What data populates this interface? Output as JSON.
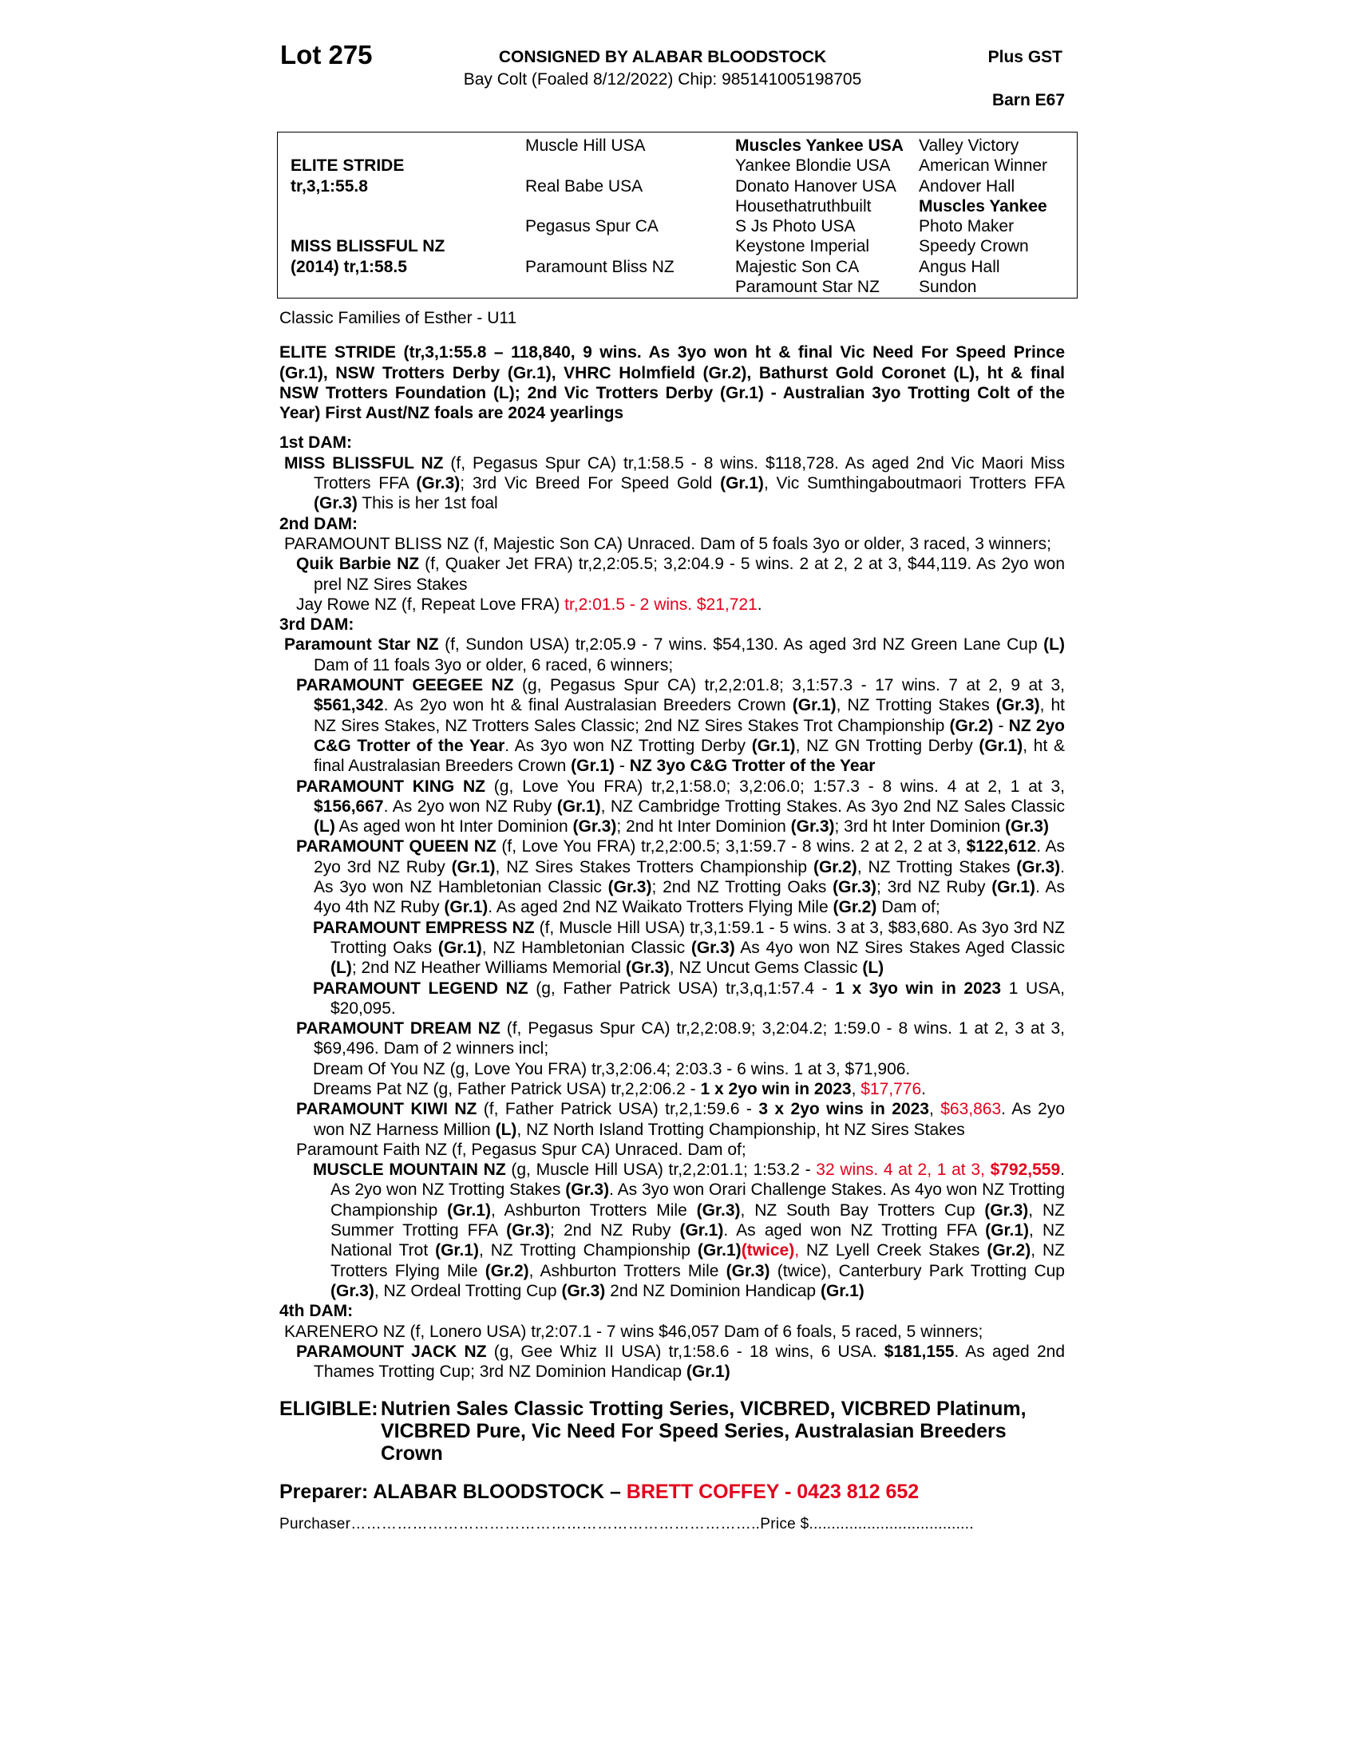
{
  "header": {
    "lot": "Lot 275",
    "consignor": "CONSIGNED BY ALABAR BLOODSTOCK",
    "gst": "Plus GST",
    "description": "Bay Colt (Foaled  8/12/2022) Chip: 985141005198705",
    "barn": "Barn E67"
  },
  "pedigree": {
    "rows": [
      [
        null,
        "Muscle Hill USA",
        {
          "text": "Muscles Yankee USA",
          "bold": true
        },
        "Valley Victory"
      ],
      [
        {
          "text": "ELITE STRIDE",
          "bold": true
        },
        null,
        "Yankee Blondie USA",
        "American Winner"
      ],
      [
        {
          "text": "tr,3,1:55.8",
          "bold": true
        },
        "Real Babe USA",
        "Donato Hanover USA",
        "Andover Hall"
      ],
      [
        null,
        null,
        "Housethatruthbuilt",
        {
          "text": "Muscles Yankee",
          "bold": true
        }
      ],
      [
        null,
        "Pegasus Spur CA",
        "S Js Photo USA",
        "Photo Maker"
      ],
      [
        {
          "text": "MISS BLISSFUL NZ",
          "bold": true
        },
        null,
        "Keystone Imperial",
        "Speedy Crown"
      ],
      [
        {
          "text": "(2014) tr,1:58.5",
          "bold": true
        },
        "Paramount Bliss NZ",
        "Majestic Son CA",
        "Angus Hall"
      ],
      [
        null,
        null,
        "Paramount Star NZ",
        "Sundon"
      ]
    ]
  },
  "family": "Classic Families of Esther - U11",
  "sire_summary": "ELITE STRIDE (tr,3,1:55.8 – 118,840, 9 wins. As 3yo won ht & final Vic Need For Speed Prince (Gr.1), NSW Trotters Derby (Gr.1), VHRC Holmfield (Gr.2), Bathurst Gold Coronet (L), ht & final NSW Trotters Foundation (L); 2nd Vic Trotters Derby (Gr.1) - Australian 3yo Trotting Colt of the Year) First Aust/NZ foals are 2024 yearlings",
  "body": [
    {
      "heading": "1st DAM:"
    },
    {
      "level": 0,
      "runs": [
        {
          "text": "MISS BLISSFUL NZ",
          "bold": true
        },
        " (f, Pegasus Spur CA) tr,1:58.5 - 8 wins. $118,728. As aged 2nd Vic Maori Miss Trotters FFA ",
        {
          "text": "(Gr.3)",
          "bold": true
        },
        "; 3rd Vic Breed For Speed Gold ",
        {
          "text": "(Gr.1)",
          "bold": true
        },
        ", Vic Sumthingaboutmaori Trotters FFA ",
        {
          "text": "(Gr.3)",
          "bold": true
        },
        " This is her 1st foal"
      ]
    },
    {
      "heading": "2nd DAM:"
    },
    {
      "level": 0,
      "runs": [
        "PARAMOUNT BLISS NZ (f, Majestic Son CA) Unraced. Dam of 5 foals 3yo or older, 3 raced, 3 winners;"
      ]
    },
    {
      "level": 1,
      "runs": [
        {
          "text": "Quik Barbie NZ",
          "bold": true
        },
        " (f, Quaker Jet FRA) tr,2,2:05.5; 3,2:04.9 - 5 wins. 2 at 2, 2 at 3, $44,119. As 2yo won prel NZ Sires Stakes"
      ]
    },
    {
      "level": 1,
      "runs": [
        "Jay Rowe NZ (f, Repeat Love FRA) ",
        {
          "text": "tr,2:01.5 - 2 wins. $21,721",
          "color": "red"
        },
        "."
      ]
    },
    {
      "heading": "3rd DAM:"
    },
    {
      "level": 0,
      "runs": [
        {
          "text": "Paramount Star NZ",
          "bold": true
        },
        " (f, Sundon USA) tr,2:05.9 - 7 wins. $54,130. As aged 3rd NZ Green Lane Cup ",
        {
          "text": "(L)",
          "bold": true
        },
        " Dam of 11 foals 3yo or older, 6 raced, 6 winners;"
      ]
    },
    {
      "level": 1,
      "runs": [
        {
          "text": "PARAMOUNT GEEGEE NZ",
          "bold": true
        },
        " (g, Pegasus Spur CA) tr,2,2:01.8; 3,1:57.3 - 17 wins. 7 at 2, 9 at 3, ",
        {
          "text": "$561,342",
          "bold": true
        },
        ". As 2yo won ht & final Australasian Breeders Crown ",
        {
          "text": "(Gr.1)",
          "bold": true
        },
        ", NZ Trotting Stakes ",
        {
          "text": "(Gr.3)",
          "bold": true
        },
        ", ht NZ Sires Stakes, NZ Trotters Sales Classic; 2nd NZ Sires Stakes Trot Championship ",
        {
          "text": "(Gr.2)",
          "bold": true
        },
        " - ",
        {
          "text": "NZ 2yo C&G Trotter of the Year",
          "bold": true
        },
        ". As 3yo won NZ Trotting Derby ",
        {
          "text": "(Gr.1)",
          "bold": true
        },
        ", NZ GN Trotting Derby ",
        {
          "text": "(Gr.1)",
          "bold": true
        },
        ", ht & final Australasian Breeders Crown ",
        {
          "text": "(Gr.1)",
          "bold": true
        },
        " - ",
        {
          "text": "NZ 3yo C&G Trotter of the Year",
          "bold": true
        }
      ]
    },
    {
      "level": 1,
      "runs": [
        {
          "text": "PARAMOUNT KING NZ",
          "bold": true
        },
        " (g, Love You FRA) tr,2,1:58.0; 3,2:06.0; 1:57.3 - 8 wins. 4 at 2, 1 at 3, ",
        {
          "text": "$156,667",
          "bold": true
        },
        ". As 2yo won NZ Ruby ",
        {
          "text": "(Gr.1)",
          "bold": true
        },
        ", NZ Cambridge Trotting Stakes. As 3yo 2nd NZ Sales Classic ",
        {
          "text": "(L)",
          "bold": true
        },
        " As aged won ht Inter Dominion ",
        {
          "text": "(Gr.3)",
          "bold": true
        },
        "; 2nd ht Inter Dominion ",
        {
          "text": "(Gr.3)",
          "bold": true
        },
        "; 3rd ht Inter Dominion ",
        {
          "text": "(Gr.3)",
          "bold": true
        }
      ]
    },
    {
      "level": 1,
      "runs": [
        {
          "text": "PARAMOUNT QUEEN NZ",
          "bold": true
        },
        " (f, Love You FRA) tr,2,2:00.5; 3,1:59.7 - 8 wins. 2 at 2, 2 at 3, ",
        {
          "text": "$122,612",
          "bold": true
        },
        ". As 2yo 3rd NZ Ruby ",
        {
          "text": "(Gr.1)",
          "bold": true
        },
        ", NZ Sires Stakes Trotters Championship ",
        {
          "text": "(Gr.2)",
          "bold": true
        },
        ", NZ Trotting Stakes ",
        {
          "text": "(Gr.3)",
          "bold": true
        },
        ". As 3yo won NZ Hambletonian Classic ",
        {
          "text": "(Gr.3)",
          "bold": true
        },
        "; 2nd NZ Trotting Oaks ",
        {
          "text": "(Gr.3)",
          "bold": true
        },
        "; 3rd NZ Ruby ",
        {
          "text": "(Gr.1)",
          "bold": true
        },
        ". As 4yo 4th NZ Ruby ",
        {
          "text": "(Gr.1)",
          "bold": true
        },
        ". As aged 2nd NZ Waikato Trotters Flying Mile ",
        {
          "text": "(Gr.2)",
          "bold": true
        },
        " Dam of;"
      ]
    },
    {
      "level": 2,
      "runs": [
        {
          "text": "PARAMOUNT EMPRESS NZ",
          "bold": true
        },
        " (f, Muscle Hill USA) tr,3,1:59.1 - 5 wins. 3 at 3, $83,680. As 3yo 3rd NZ Trotting Oaks ",
        {
          "text": "(Gr.1)",
          "bold": true
        },
        ", NZ Hambletonian Classic ",
        {
          "text": "(Gr.3)",
          "bold": true
        },
        " As 4yo won NZ Sires Stakes Aged Classic ",
        {
          "text": "(L)",
          "bold": true
        },
        "; 2nd NZ Heather Williams Memorial ",
        {
          "text": "(Gr.3)",
          "bold": true
        },
        ", NZ Uncut Gems Classic ",
        {
          "text": "(L)",
          "bold": true
        }
      ]
    },
    {
      "level": 2,
      "runs": [
        {
          "text": "PARAMOUNT LEGEND NZ",
          "bold": true
        },
        " (g, Father Patrick USA) tr,3,q,1:57.4 - ",
        {
          "text": "1 x 3yo win in 2023",
          "bold": true
        },
        " 1 USA, $20,095."
      ]
    },
    {
      "level": 1,
      "runs": [
        {
          "text": "PARAMOUNT DREAM NZ",
          "bold": true
        },
        " (f, Pegasus Spur CA) tr,2,2:08.9; 3,2:04.2; 1:59.0 - 8 wins. 1 at 2, 3 at 3, $69,496. Dam of 2 winners incl;"
      ]
    },
    {
      "level": 2,
      "runs": [
        "Dream Of You NZ (g, Love You FRA) tr,3,2:06.4; 2:03.3 - 6 wins. 1 at 3, $71,906."
      ]
    },
    {
      "level": 2,
      "runs": [
        "Dreams Pat NZ (g, Father Patrick USA) tr,2,2:06.2 - ",
        {
          "text": "1 x 2yo win in 2023",
          "bold": true
        },
        ", ",
        {
          "text": "$17,776",
          "color": "red"
        },
        "."
      ]
    },
    {
      "level": 1,
      "runs": [
        {
          "text": "PARAMOUNT KIWI NZ",
          "bold": true
        },
        " (f, Father Patrick USA) tr,2,1:59.6 - ",
        {
          "text": "3 x 2yo wins in 2023",
          "bold": true
        },
        ", ",
        {
          "text": "$63,863",
          "color": "red"
        },
        ". As 2yo won NZ Harness Million ",
        {
          "text": "(L)",
          "bold": true
        },
        ", NZ North Island Trotting Championship, ht NZ Sires Stakes"
      ]
    },
    {
      "level": 1,
      "runs": [
        "Paramount Faith NZ (f, Pegasus Spur CA) Unraced. Dam of;"
      ]
    },
    {
      "level": 2,
      "runs": [
        {
          "text": "MUSCLE MOUNTAIN NZ",
          "bold": true
        },
        " (g, Muscle Hill USA) tr,2,2:01.1; 1:53.2 - ",
        {
          "text": "32 wins. 4 at 2, 1 at 3,",
          "color": "red"
        },
        " ",
        {
          "text": "$792,559",
          "bold": true,
          "color": "red"
        },
        ". As 2yo won NZ Trotting Stakes ",
        {
          "text": "(Gr.3)",
          "bold": true
        },
        ". As 3yo won Orari Challenge Stakes. As 4yo won NZ Trotting Championship ",
        {
          "text": "(Gr.1)",
          "bold": true
        },
        ", Ashburton Trotters Mile ",
        {
          "text": "(Gr.3)",
          "bold": true
        },
        ", NZ South Bay Trotters Cup ",
        {
          "text": "(Gr.3)",
          "bold": true
        },
        ", NZ Summer Trotting FFA ",
        {
          "text": "(Gr.3)",
          "bold": true
        },
        "; 2nd NZ Ruby ",
        {
          "text": "(Gr.1)",
          "bold": true
        },
        ". As aged won NZ Trotting FFA ",
        {
          "text": "(Gr.1)",
          "bold": true
        },
        ", NZ National Trot ",
        {
          "text": "(Gr.1)",
          "bold": true
        },
        ", NZ Trotting Championship ",
        {
          "text": "(Gr.1)",
          "bold": true
        },
        {
          "text": "(twice)",
          "bold": true,
          "color": "red"
        },
        {
          "text": ", ",
          "color": "red"
        },
        "NZ Lyell Creek Stakes ",
        {
          "text": "(Gr.2)",
          "bold": true
        },
        ", NZ Trotters Flying Mile ",
        {
          "text": "(Gr.2)",
          "bold": true
        },
        ", Ashburton Trotters Mile ",
        {
          "text": "(Gr.3)",
          "bold": true
        },
        " (twice), Canterbury Park Trotting Cup ",
        {
          "text": "(Gr.3)",
          "bold": true
        },
        ", NZ Ordeal Trotting Cup ",
        {
          "text": "(Gr.3)",
          "bold": true
        },
        " 2nd NZ Dominion Handicap ",
        {
          "text": "(Gr.1)",
          "bold": true
        }
      ]
    },
    {
      "heading": "4th DAM:"
    },
    {
      "level": 0,
      "runs": [
        "KARENERO NZ (f, Lonero USA) tr,2:07.1 - 7 wins $46,057 Dam of 6 foals, 5 raced, 5 winners;"
      ]
    },
    {
      "level": 1,
      "runs": [
        {
          "text": "PARAMOUNT JACK NZ",
          "bold": true
        },
        " (g, Gee Whiz II USA) tr,1:58.6 - 18 wins, 6 USA. ",
        {
          "text": "$181,155",
          "bold": true
        },
        ". As aged 2nd Thames Trotting Cup; 3rd NZ Dominion Handicap ",
        {
          "text": "(Gr.1)",
          "bold": true
        }
      ]
    }
  ],
  "eligible": {
    "label": "ELIGIBLE:",
    "text": "Nutrien Sales Classic Trotting Series, VICBRED, VICBRED Platinum, VICBRED Pure, Vic Need For Speed Series, Australasian Breeders Crown"
  },
  "preparer": {
    "label": "Preparer: ALABAR BLOODSTOCK – ",
    "contact": "BRETT COFFEY - 0423 812 652"
  },
  "purchaser": "Purchaser……………………………………………………………………..Price $....................................."
}
